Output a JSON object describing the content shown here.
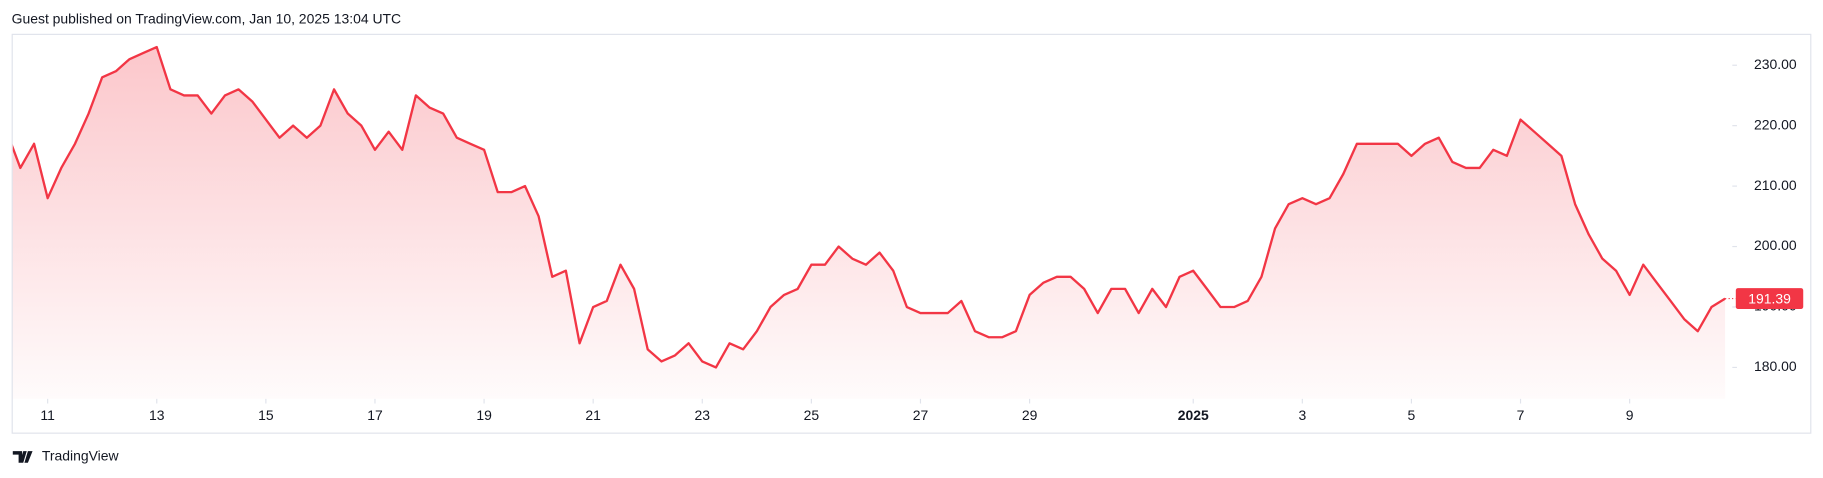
{
  "header": "Guest published on TradingView.com, Jan 10, 2025 13:04 UTC",
  "footer": "TradingView",
  "chart_data": {
    "type": "area",
    "color": "#f23645",
    "values": [
      219,
      213,
      217,
      208,
      213,
      217,
      222,
      228,
      229,
      231,
      232,
      233,
      226,
      225,
      225,
      222,
      225,
      226,
      224,
      221,
      218,
      220,
      218,
      220,
      226,
      222,
      220,
      216,
      219,
      216,
      225,
      223,
      222,
      218,
      217,
      216,
      209,
      209,
      210,
      205,
      195,
      196,
      184,
      190,
      191,
      197,
      193,
      183,
      181,
      182,
      184,
      181,
      180,
      184,
      183,
      186,
      190,
      192,
      193,
      197,
      197,
      200,
      198,
      197,
      199,
      196,
      190,
      189,
      189,
      189,
      191,
      186,
      185,
      185,
      186,
      192,
      194,
      195,
      195,
      193,
      189,
      193,
      193,
      189,
      193,
      190,
      195,
      196,
      193,
      190,
      190,
      191,
      195,
      203,
      207,
      208,
      207,
      208,
      212,
      217,
      217,
      217,
      217,
      215,
      217,
      218,
      214,
      213,
      213,
      216,
      215,
      221,
      219,
      217,
      215,
      207,
      202,
      198,
      196,
      192,
      197,
      194,
      191,
      188,
      186,
      190,
      191.39
    ],
    "xticks": [
      {
        "value": 3,
        "label": "11"
      },
      {
        "value": 11,
        "label": "13"
      },
      {
        "value": 19,
        "label": "15"
      },
      {
        "value": 27,
        "label": "17"
      },
      {
        "value": 35,
        "label": "19"
      },
      {
        "value": 43,
        "label": "21"
      },
      {
        "value": 51,
        "label": "23"
      },
      {
        "value": 59,
        "label": "25"
      },
      {
        "value": 67,
        "label": "27"
      },
      {
        "value": 75,
        "label": "29"
      },
      {
        "value": 87,
        "label": "2025"
      },
      {
        "value": 95,
        "label": "3"
      },
      {
        "value": 103,
        "label": "5"
      },
      {
        "value": 111,
        "label": "7"
      },
      {
        "value": 119,
        "label": "9"
      }
    ],
    "ylim": [
      174.8,
      235.2
    ],
    "yticks": [
      {
        "value": 180,
        "label": "180.00"
      },
      {
        "value": 190,
        "label": "190.00"
      },
      {
        "value": 200,
        "label": "200.00"
      },
      {
        "value": 210,
        "label": "210.00"
      },
      {
        "value": 220,
        "label": "220.00"
      },
      {
        "value": 230,
        "label": "230.00"
      }
    ]
  }
}
